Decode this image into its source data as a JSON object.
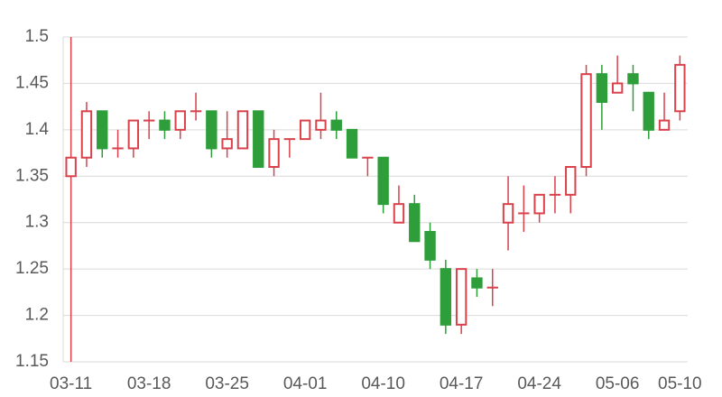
{
  "chart_data": {
    "type": "candlestick",
    "categories": [
      "03-11",
      null,
      null,
      null,
      null,
      "03-18",
      null,
      null,
      null,
      null,
      "03-25",
      null,
      null,
      null,
      null,
      "04-01",
      null,
      null,
      null,
      null,
      "04-10",
      null,
      null,
      null,
      null,
      "04-17",
      null,
      null,
      null,
      null,
      "04-24",
      null,
      null,
      null,
      null,
      "05-06",
      null,
      null,
      null,
      "05-10"
    ],
    "open": [
      1.35,
      1.37,
      1.42,
      1.38,
      1.38,
      1.41,
      1.41,
      1.4,
      1.42,
      1.42,
      1.38,
      1.38,
      1.42,
      1.36,
      1.39,
      1.39,
      1.4,
      1.41,
      1.4,
      1.37,
      1.37,
      1.3,
      1.32,
      1.29,
      1.25,
      1.19,
      1.24,
      1.23,
      1.3,
      1.31,
      1.31,
      1.33,
      1.33,
      1.36,
      1.46,
      1.44,
      1.46,
      1.44,
      1.4,
      1.42
    ],
    "high": [
      1.5,
      1.43,
      1.42,
      1.4,
      1.41,
      1.42,
      1.42,
      1.42,
      1.44,
      1.42,
      1.42,
      1.42,
      1.42,
      1.4,
      1.39,
      1.41,
      1.44,
      1.42,
      1.4,
      1.37,
      1.37,
      1.34,
      1.33,
      1.3,
      1.26,
      1.25,
      1.25,
      1.25,
      1.35,
      1.34,
      1.33,
      1.35,
      1.36,
      1.47,
      1.47,
      1.48,
      1.47,
      1.44,
      1.44,
      1.48
    ],
    "low": [
      1.15,
      1.36,
      1.37,
      1.37,
      1.37,
      1.39,
      1.39,
      1.39,
      1.41,
      1.37,
      1.37,
      1.38,
      1.36,
      1.35,
      1.37,
      1.39,
      1.39,
      1.39,
      1.37,
      1.35,
      1.31,
      1.3,
      1.28,
      1.25,
      1.18,
      1.18,
      1.22,
      1.21,
      1.27,
      1.29,
      1.3,
      1.31,
      1.31,
      1.35,
      1.4,
      1.44,
      1.42,
      1.39,
      1.4,
      1.41
    ],
    "close": [
      1.37,
      1.42,
      1.38,
      1.38,
      1.41,
      1.41,
      1.4,
      1.42,
      1.42,
      1.38,
      1.39,
      1.42,
      1.36,
      1.39,
      1.39,
      1.41,
      1.41,
      1.4,
      1.37,
      1.37,
      1.32,
      1.32,
      1.28,
      1.26,
      1.19,
      1.25,
      1.23,
      1.23,
      1.32,
      1.31,
      1.33,
      1.33,
      1.36,
      1.46,
      1.43,
      1.45,
      1.45,
      1.4,
      1.41,
      1.47
    ],
    "up_color": "#d9414b",
    "down_color": "#2e9e3a",
    "ylim": [
      1.15,
      1.5
    ],
    "yticks": [
      1.15,
      1.2,
      1.25,
      1.3,
      1.35,
      1.4,
      1.45,
      1.5
    ],
    "grid": true
  }
}
